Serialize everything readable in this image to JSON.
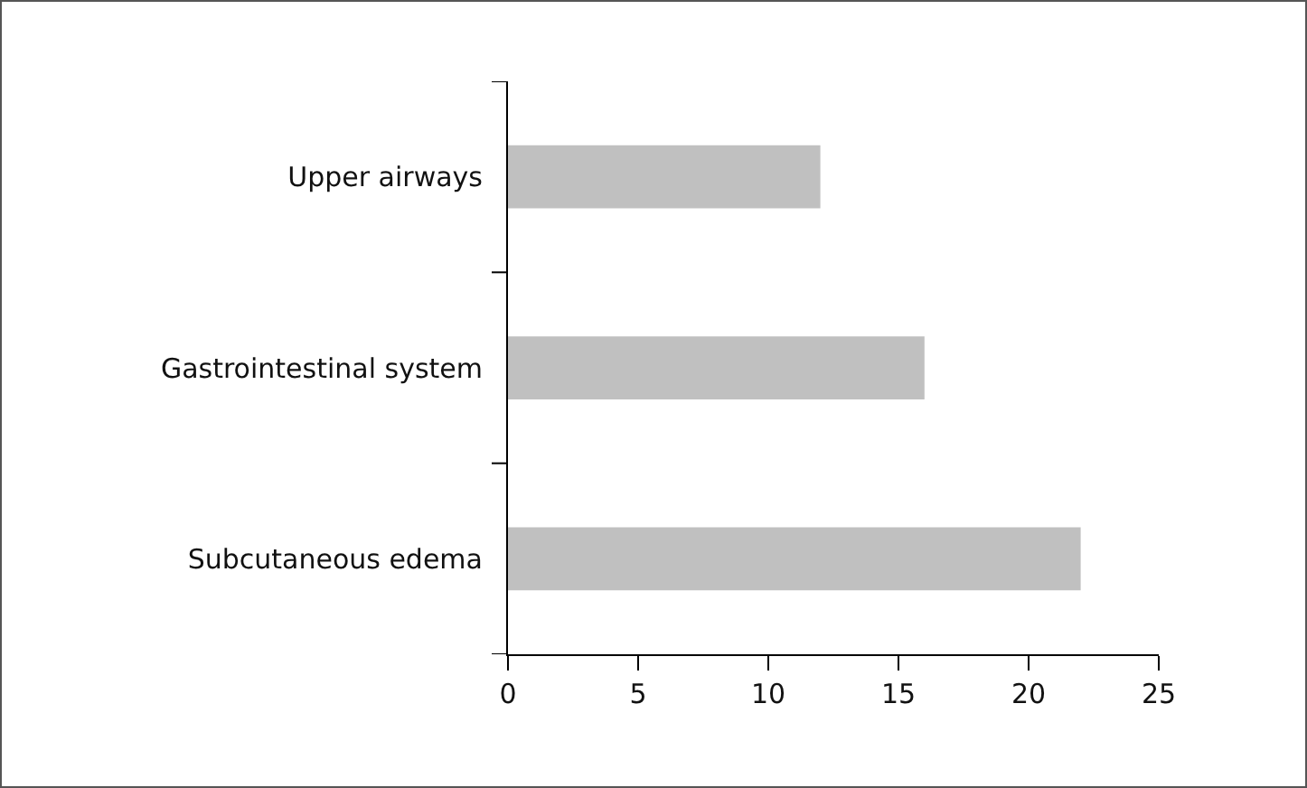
{
  "chart_data": {
    "type": "bar",
    "orientation": "horizontal",
    "categories": [
      "Upper airways",
      "Gastrointestinal system",
      "Subcutaneous edema"
    ],
    "values": [
      12,
      16,
      22
    ],
    "color": "#c0c0c0",
    "xlim": [
      0,
      25
    ],
    "xticks": [
      0,
      5,
      10,
      15,
      20,
      25
    ],
    "grid": false
  }
}
